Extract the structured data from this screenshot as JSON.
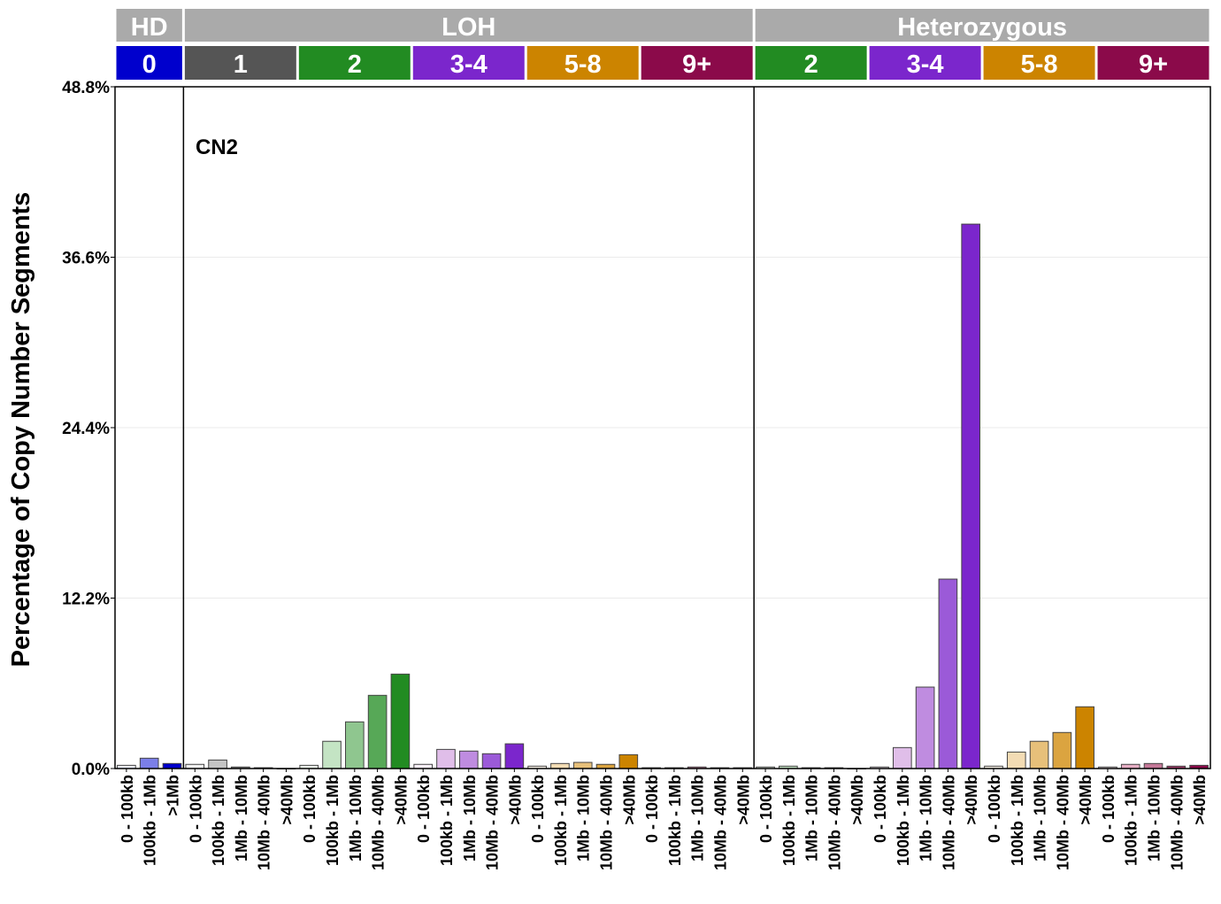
{
  "chart_data": {
    "type": "bar",
    "ylabel": "Percentage of Copy Number Segments",
    "ylim": [
      0,
      48.8
    ],
    "yticks": [
      "0.0%",
      "12.2%",
      "24.4%",
      "36.6%",
      "48.8%"
    ],
    "ytick_values": [
      0,
      12.2,
      24.4,
      36.6,
      48.8
    ],
    "grid": true,
    "annotation": "CN2",
    "top_groups": [
      {
        "label": "HD",
        "subgroups": 1
      },
      {
        "label": "LOH",
        "subgroups": 5
      },
      {
        "label": "Heterozygous",
        "subgroups": 4
      }
    ],
    "groups": [
      {
        "label": "0",
        "color": "#0000cd",
        "categories": [
          "0 - 100kb",
          "100kb - 1Mb",
          ">1Mb"
        ],
        "values": [
          0.23,
          0.74,
          0.36
        ],
        "shades": [
          "#eef3ff",
          "#7b7fe8",
          "#0000cc"
        ]
      },
      {
        "label": "1",
        "color": "#555555",
        "categories": [
          "0 - 100kb",
          "100kb - 1Mb",
          "1Mb - 10Mb",
          "10Mb - 40Mb",
          ">40Mb"
        ],
        "values": [
          0.3,
          0.61,
          0.11,
          0.06,
          0
        ],
        "shades": [
          "#f0f0f0",
          "#c4c4c4",
          "#8c8c8c",
          "#505050",
          "#303030"
        ]
      },
      {
        "label": "2",
        "color": "#228b22",
        "categories": [
          "0 - 100kb",
          "100kb - 1Mb",
          "1Mb - 10Mb",
          "10Mb - 40Mb",
          ">40Mb"
        ],
        "values": [
          0.23,
          1.95,
          3.34,
          5.24,
          6.76
        ],
        "shades": [
          "#f0fbef",
          "#c4e4c4",
          "#8fc68f",
          "#57a857",
          "#228b22"
        ]
      },
      {
        "label": "3-4",
        "color": "#7b26cc",
        "categories": [
          "0 - 100kb",
          "100kb - 1Mb",
          "1Mb - 10Mb",
          "10Mb - 40Mb",
          ">40Mb"
        ],
        "values": [
          0.3,
          1.37,
          1.25,
          1.06,
          1.77
        ],
        "shades": [
          "#fbf0fb",
          "#e0bee9",
          "#bf8ce0",
          "#9b5ad8",
          "#7b26cc"
        ]
      },
      {
        "label": "5-8",
        "color": "#cc8400",
        "categories": [
          "0 - 100kb",
          "100kb - 1Mb",
          "1Mb - 10Mb",
          "10Mb - 40Mb",
          ">40Mb"
        ],
        "values": [
          0.17,
          0.36,
          0.44,
          0.3,
          0.99
        ],
        "shades": [
          "#fdf6ec",
          "#f3dcb4",
          "#e7c07a",
          "#dba440",
          "#cc8400"
        ]
      },
      {
        "label": "9+",
        "color": "#8b0a4a",
        "categories": [
          "0 - 100kb",
          "100kb - 1Mb",
          "1Mb - 10Mb",
          "10Mb - 40Mb",
          ">40Mb"
        ],
        "values": [
          0.06,
          0.06,
          0.11,
          0.06,
          0.06
        ],
        "shades": [
          "#f7e9ef",
          "#e6aec4",
          "#c47898",
          "#a03a6a",
          "#8b0a4a"
        ]
      },
      {
        "label": "2",
        "color": "#228b22",
        "categories": [
          "0 - 100kb",
          "100kb - 1Mb",
          "1Mb - 10Mb",
          "10Mb - 40Mb",
          ">40Mb"
        ],
        "values": [
          0.11,
          0.17,
          0.06,
          0.06,
          0
        ],
        "shades": [
          "#f0fbef",
          "#c4e4c4",
          "#8fc68f",
          "#57a857",
          "#228b22"
        ]
      },
      {
        "label": "3-4",
        "color": "#7b26cc",
        "categories": [
          "0 - 100kb",
          "100kb - 1Mb",
          "1Mb - 10Mb",
          "10Mb - 40Mb",
          ">40Mb"
        ],
        "values": [
          0.11,
          1.5,
          5.83,
          13.56,
          38.97
        ],
        "shades": [
          "#fbf0fb",
          "#e0bee9",
          "#bf8ce0",
          "#9b5ad8",
          "#7b26cc"
        ]
      },
      {
        "label": "5-8",
        "color": "#cc8400",
        "categories": [
          "0 - 100kb",
          "100kb - 1Mb",
          "1Mb - 10Mb",
          "10Mb - 40Mb",
          ">40Mb"
        ],
        "values": [
          0.17,
          1.18,
          1.95,
          2.58,
          4.42
        ],
        "shades": [
          "#fdf6ec",
          "#f3dcb4",
          "#e7c07a",
          "#dba440",
          "#cc8400"
        ]
      },
      {
        "label": "9+",
        "color": "#8b0a4a",
        "categories": [
          "0 - 100kb",
          "100kb - 1Mb",
          "1Mb - 10Mb",
          "10Mb - 40Mb",
          ">40Mb"
        ],
        "values": [
          0.11,
          0.3,
          0.36,
          0.17,
          0.23
        ],
        "shades": [
          "#f7e9ef",
          "#e6aec4",
          "#c47898",
          "#a03a6a",
          "#8b0a4a"
        ]
      }
    ],
    "header_color": "#aaaaaa"
  }
}
